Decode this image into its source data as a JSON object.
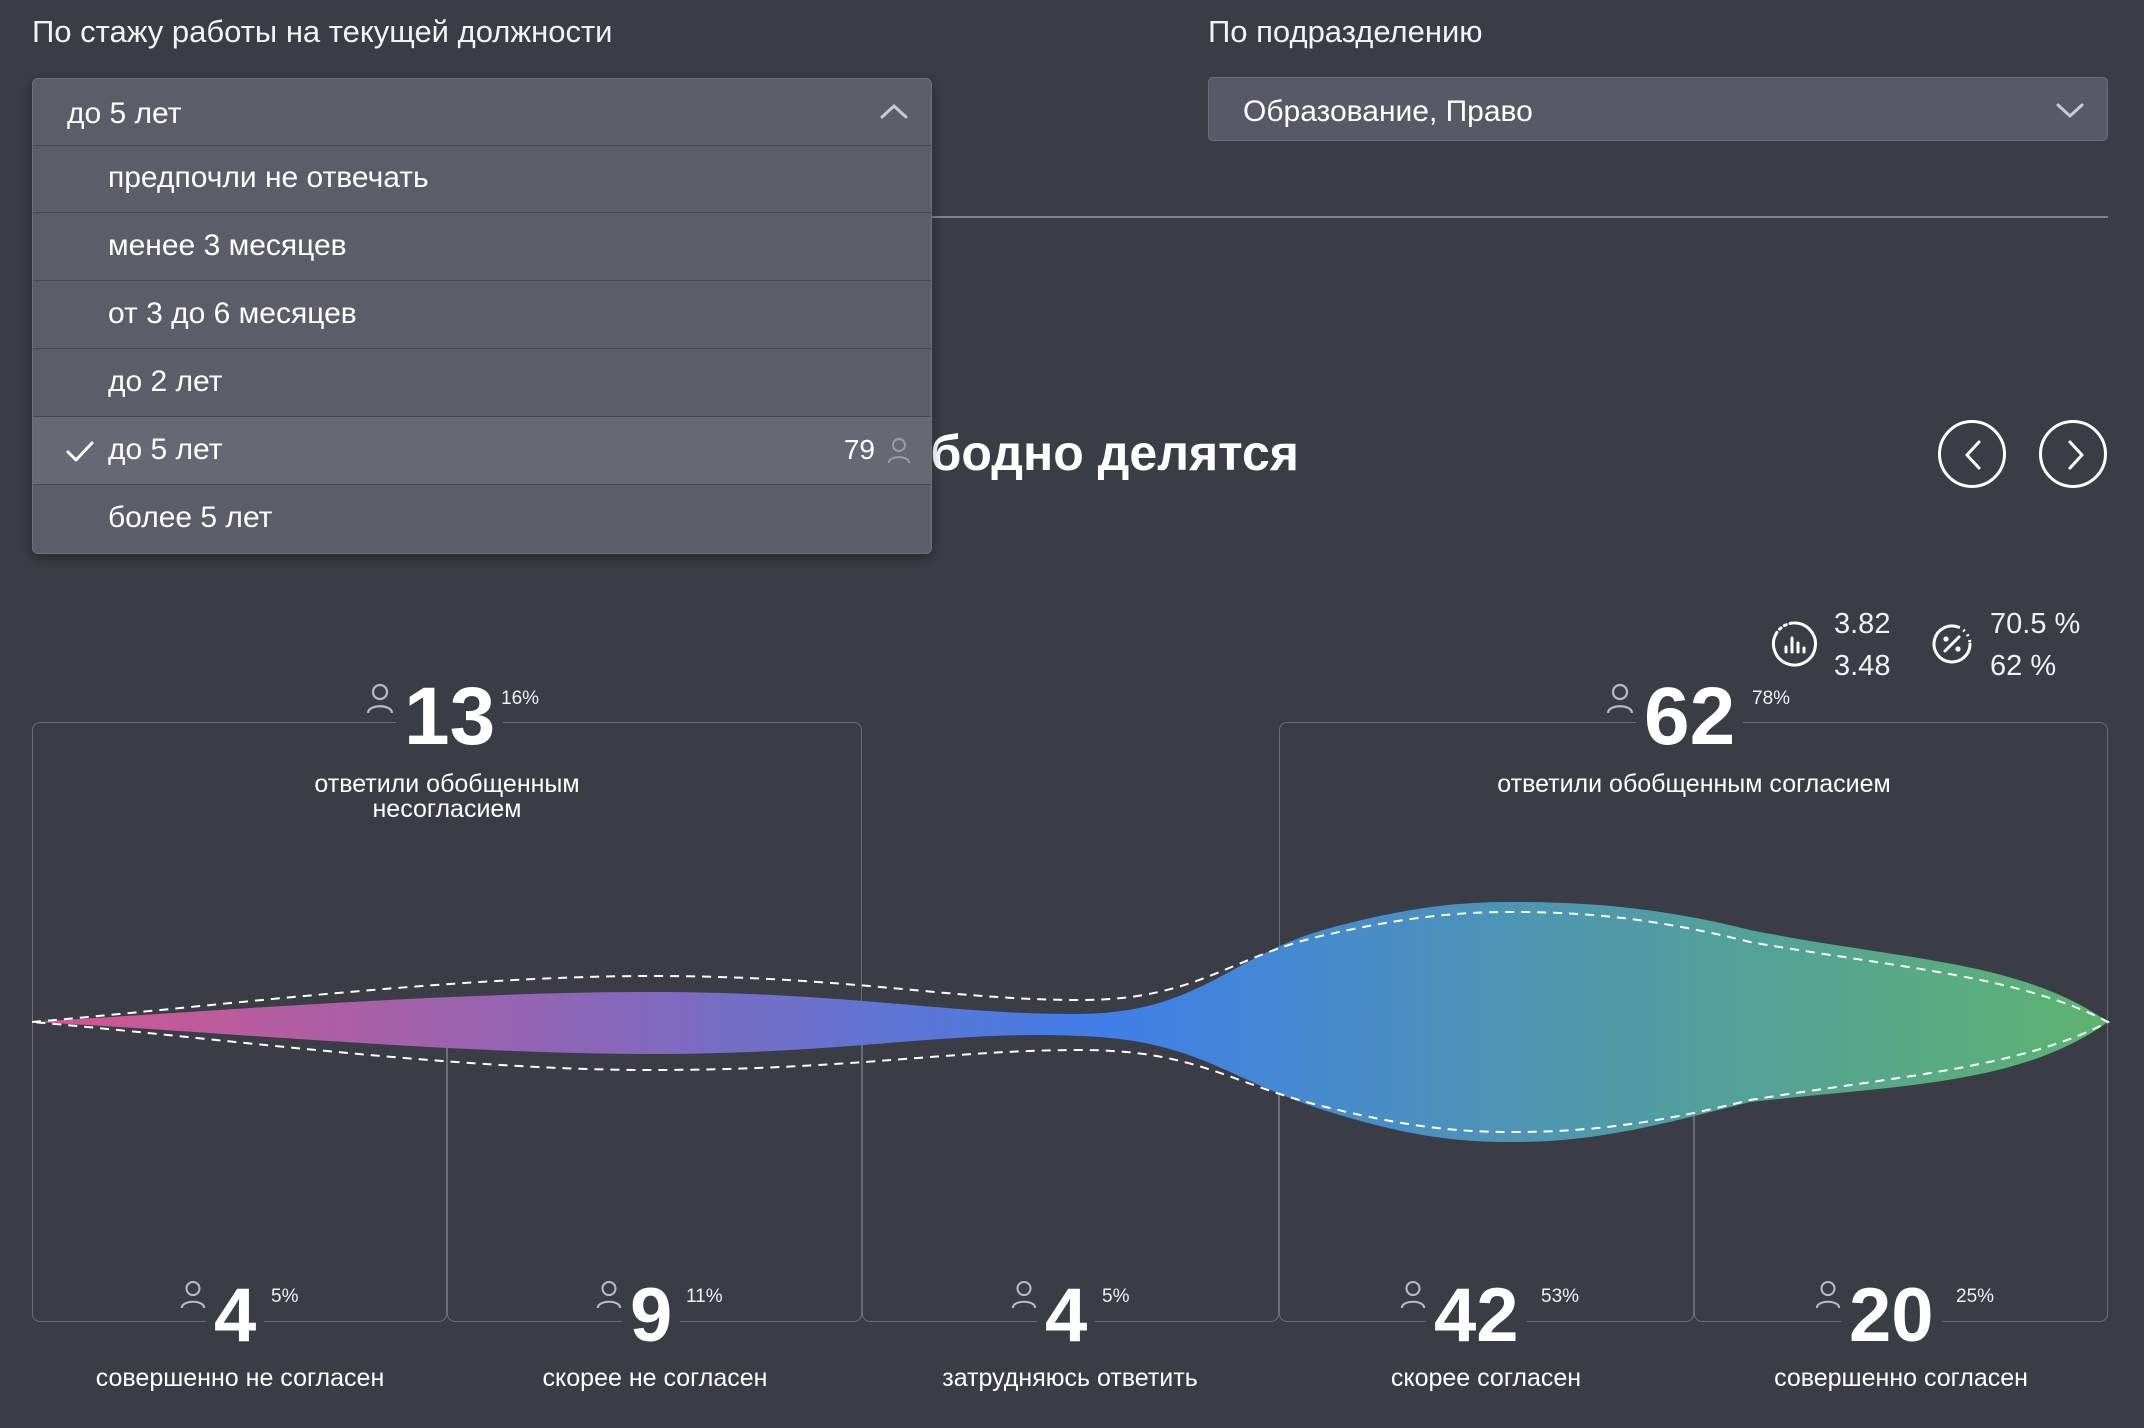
{
  "filters": {
    "tenure_label": "По стажу работы на текущей должности",
    "tenure_value": "до 5 лет",
    "department_label": "По подразделению",
    "department_value": "Образование, Право"
  },
  "dropdown": {
    "options": [
      {
        "label": "предпочли не отвечать"
      },
      {
        "label": "менее 3 месяцев"
      },
      {
        "label": "от 3 до 6 месяцев"
      },
      {
        "label": "до 2 лет"
      },
      {
        "label": "до 5 лет",
        "count": "79",
        "selected": true
      },
      {
        "label": "более 5 лет"
      }
    ]
  },
  "question": {
    "title_visible": "ободно делятся"
  },
  "stats": {
    "mean_current": "3.82",
    "mean_compare": "3.48",
    "agree_pct_current": "70.5 %",
    "agree_pct_compare": "62 %"
  },
  "groups": {
    "disagree": {
      "count": "13",
      "pct": "16%",
      "caption_line1": "ответили обобщенным",
      "caption_line2": "несогласием"
    },
    "agree": {
      "count": "62",
      "pct": "78%",
      "caption": "ответили обобщенным согласием"
    }
  },
  "categories": [
    {
      "count": "4",
      "pct": "5%",
      "label": "совершенно не согласен"
    },
    {
      "count": "9",
      "pct": "11%",
      "label": "скорее не согласен"
    },
    {
      "count": "4",
      "pct": "5%",
      "label": "затрудняюсь ответить"
    },
    {
      "count": "42",
      "pct": "53%",
      "label": "скорее согласен"
    },
    {
      "count": "20",
      "pct": "25%",
      "label": "совершенно согласен"
    }
  ],
  "colors": {
    "background": "#3b3d46",
    "gradient_start": "#d5568f",
    "gradient_mid1": "#8a66b8",
    "gradient_mid2": "#3f7fe8",
    "gradient_mid3": "#4e97b0",
    "gradient_end": "#5cb46e"
  },
  "icons": {
    "chevron_up": "chevron-up-icon",
    "chevron_down": "chevron-down-icon",
    "check": "check-icon",
    "user": "user-icon",
    "prev": "chevron-left-icon",
    "next": "chevron-right-icon",
    "mean": "bar-chart-circle-icon",
    "percent": "percent-circle-icon"
  }
}
